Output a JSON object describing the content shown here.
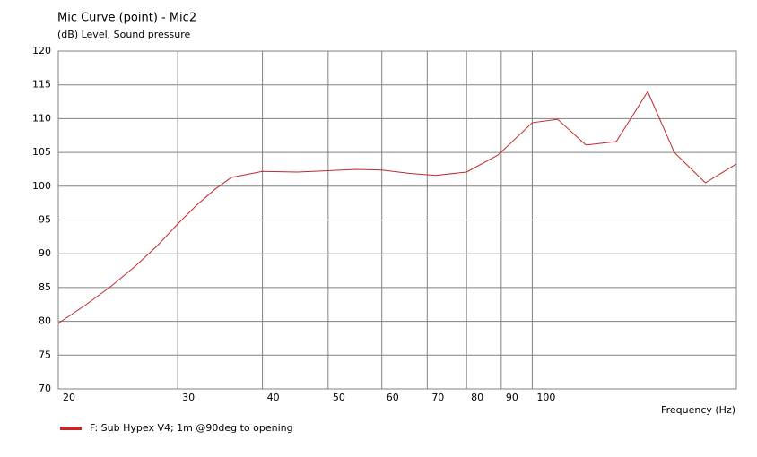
{
  "chart_data": {
    "type": "line",
    "title": "Mic Curve (point) - Mic2",
    "y_label": "(dB)  Level, Sound pressure",
    "x_label": "Frequency  (Hz)",
    "x": [
      20,
      22,
      24,
      26,
      28,
      30,
      32,
      34,
      36,
      40,
      45,
      50,
      55,
      60,
      66,
      72,
      80,
      89,
      100,
      109,
      120,
      133,
      148,
      162,
      180,
      200
    ],
    "series": [
      {
        "name": "F: Sub Hypex V4; 1m @90deg to opening",
        "color": "#c0282a",
        "values": [
          79.7,
          82.5,
          85.3,
          88.2,
          91.2,
          94.4,
          97.2,
          99.5,
          101.3,
          102.2,
          102.1,
          102.3,
          102.5,
          102.4,
          101.9,
          101.6,
          102.1,
          104.6,
          109.4,
          109.9,
          106.1,
          106.6,
          114.0,
          105.0,
          100.5,
          103.3
        ]
      }
    ],
    "xscale": "log",
    "xlim": [
      20,
      200
    ],
    "xticks": [
      20,
      30,
      40,
      50,
      60,
      70,
      80,
      90,
      100
    ],
    "ylim": [
      70,
      120
    ],
    "yticks": [
      70,
      75,
      80,
      85,
      90,
      95,
      100,
      105,
      110,
      115,
      120
    ],
    "grid": true
  }
}
